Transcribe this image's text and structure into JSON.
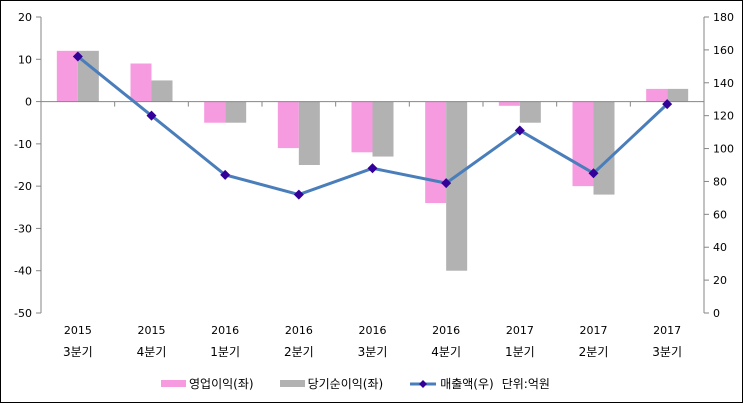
{
  "chart_data": {
    "type": "bar+line",
    "categories": [
      [
        "2015",
        "3분기"
      ],
      [
        "2015",
        "4분기"
      ],
      [
        "2016",
        "1분기"
      ],
      [
        "2016",
        "2분기"
      ],
      [
        "2016",
        "3분기"
      ],
      [
        "2016",
        "4분기"
      ],
      [
        "2017",
        "1분기"
      ],
      [
        "2017",
        "2분기"
      ],
      [
        "2017",
        "3분기"
      ]
    ],
    "series": [
      {
        "name": "영업이익(좌)",
        "type": "bar",
        "axis": "left",
        "color": "#f79be1",
        "values": [
          12,
          9,
          -5,
          -11,
          -12,
          -24,
          -1,
          -20,
          3
        ]
      },
      {
        "name": "당기순이익(좌)",
        "type": "bar",
        "axis": "left",
        "color": "#b2b2b2",
        "values": [
          12,
          5,
          -5,
          -15,
          -13,
          -40,
          -5,
          -22,
          3
        ]
      },
      {
        "name": "매출액(우)",
        "type": "line",
        "axis": "right",
        "color": "#4a7ebb",
        "marker_color": "#330099",
        "values": [
          156,
          120,
          84,
          72,
          88,
          79,
          111,
          85,
          127
        ]
      }
    ],
    "left_axis": {
      "min": -50,
      "max": 20,
      "step": 10,
      "ticks": [
        "20",
        "10",
        "0",
        "-10",
        "-20",
        "-30",
        "-40",
        "-50"
      ]
    },
    "right_axis": {
      "min": 0,
      "max": 180,
      "step": 20,
      "ticks": [
        "180",
        "160",
        "140",
        "120",
        "100",
        "80",
        "60",
        "40",
        "20",
        "0"
      ]
    },
    "unit_note": "단위:억원",
    "legend_placement": "bottom"
  }
}
